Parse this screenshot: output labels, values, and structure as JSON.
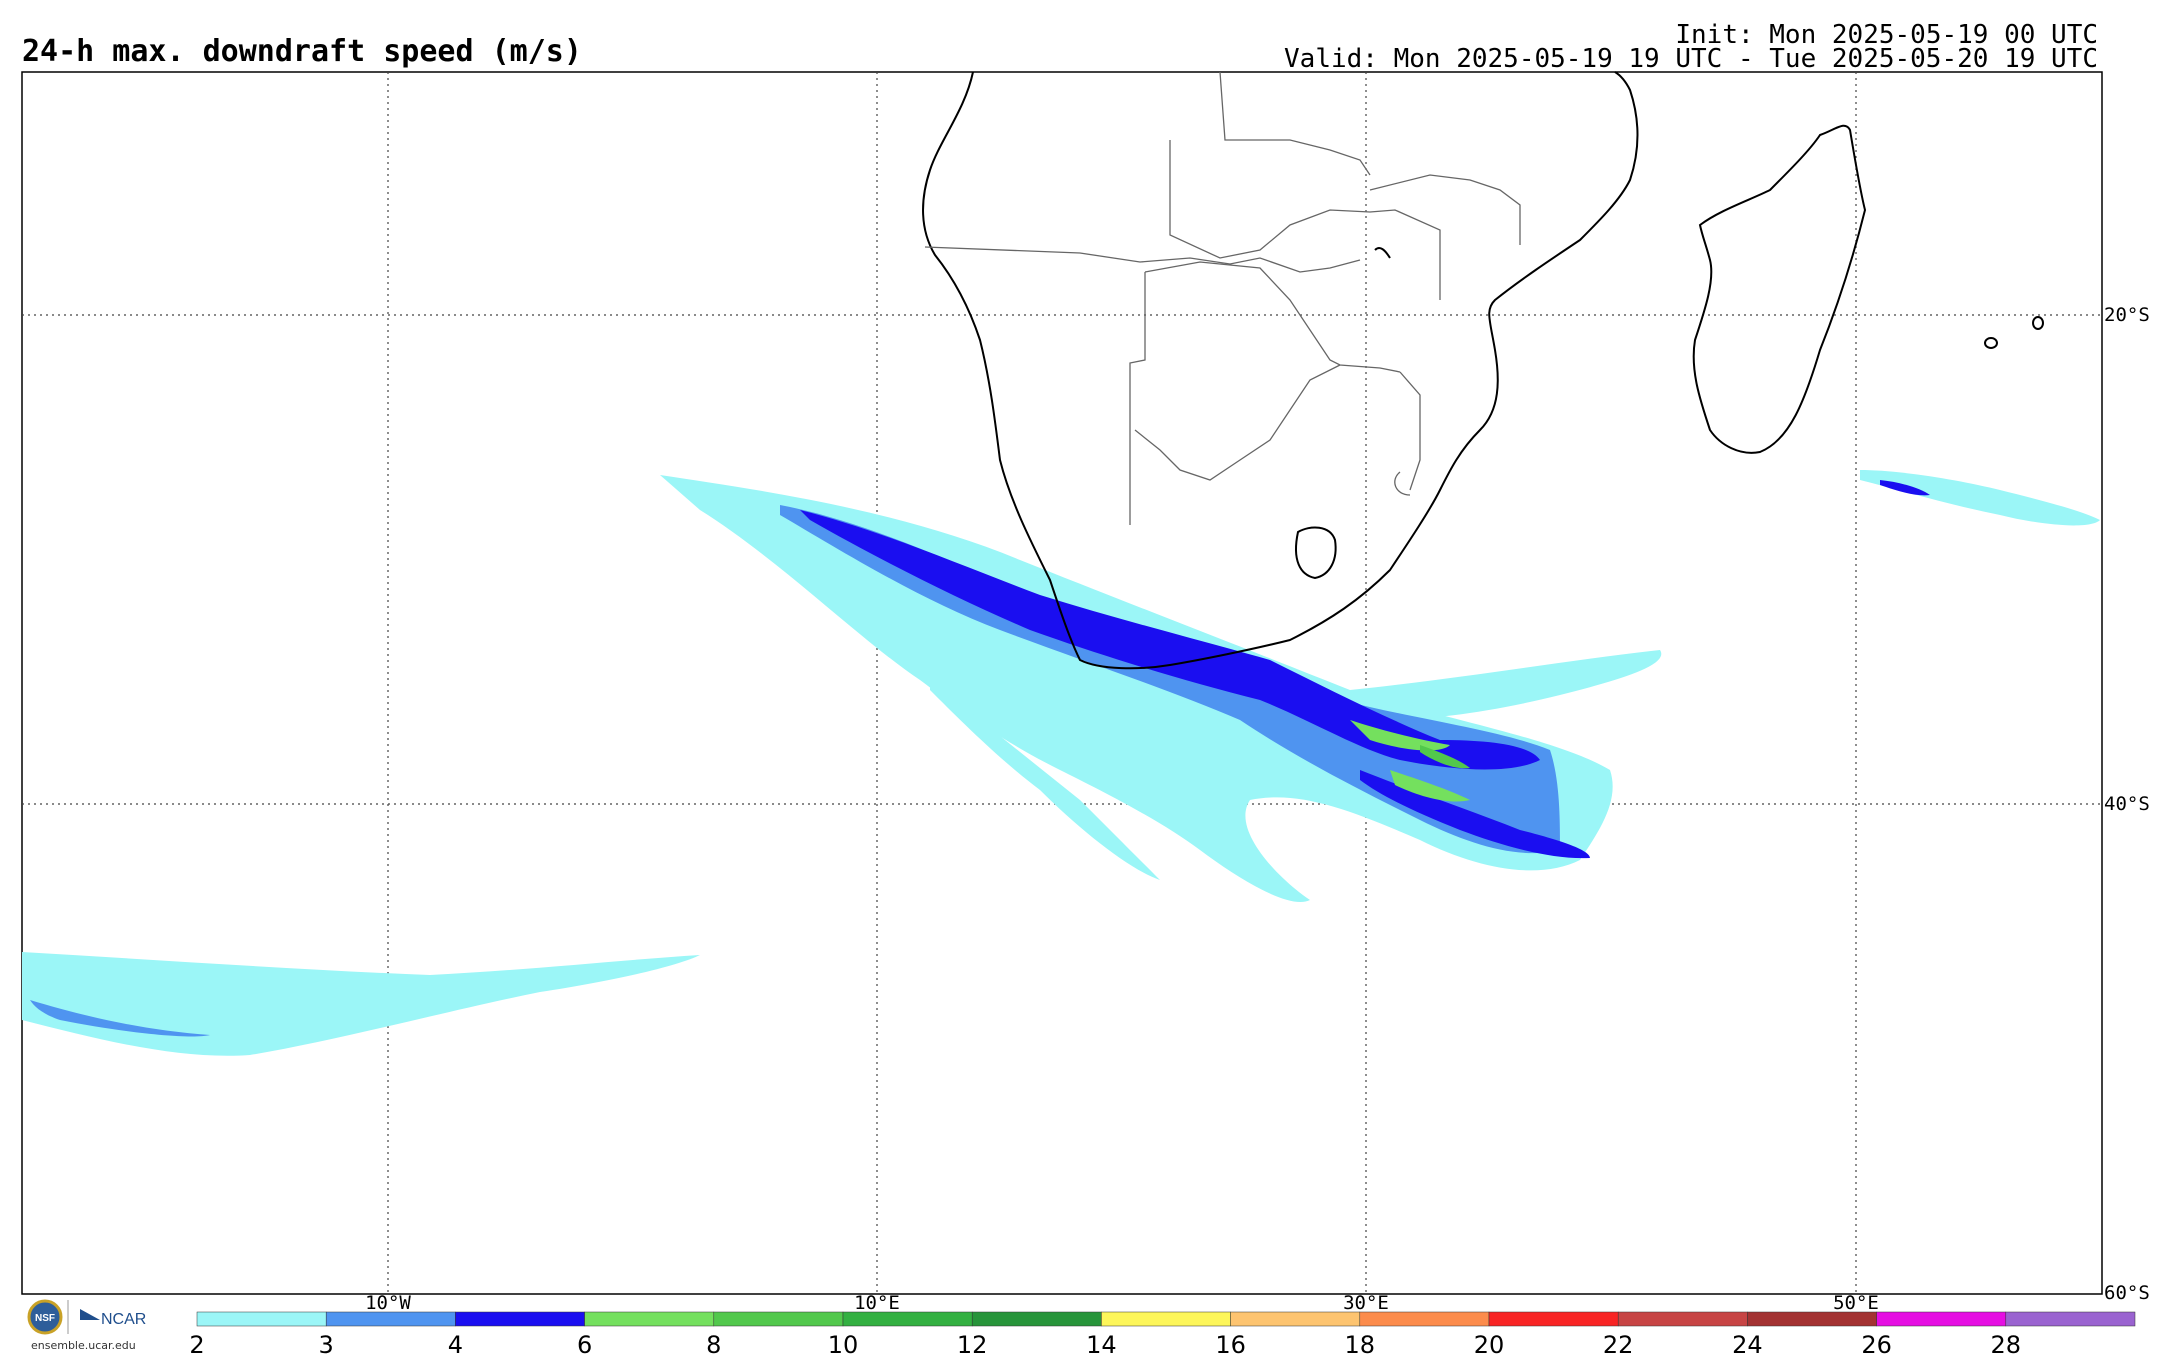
{
  "header": {
    "title": "24-h max. downdraft speed (m/s)",
    "init": "Init: Mon 2025-05-19 00 UTC",
    "valid": "Valid: Mon 2025-05-19 19 UTC - Tue 2025-05-20 19 UTC"
  },
  "map": {
    "lat_labels": [
      "20°S",
      "40°S",
      "60°S"
    ],
    "lon_labels": [
      "10°W",
      "10°E",
      "30°E",
      "50°E"
    ],
    "region": "Southern Africa and South Atlantic / Indian Ocean"
  },
  "colorbar": {
    "ticks": [
      "2",
      "3",
      "4",
      "6",
      "8",
      "10",
      "12",
      "14",
      "16",
      "18",
      "20",
      "22",
      "24",
      "26",
      "28"
    ],
    "colors": [
      "#9bf6f7",
      "#4f94f0",
      "#1a0ef0",
      "#74e05e",
      "#52c84c",
      "#33b041",
      "#27943a",
      "#fdf65a",
      "#fdc470",
      "#fc8c4c",
      "#f82424",
      "#c74444",
      "#a33232",
      "#e50ee2",
      "#9a63d0"
    ]
  },
  "logos": {
    "nsf": "NSF",
    "ncar": "NCAR",
    "url": "ensemble.ucar.edu"
  }
}
